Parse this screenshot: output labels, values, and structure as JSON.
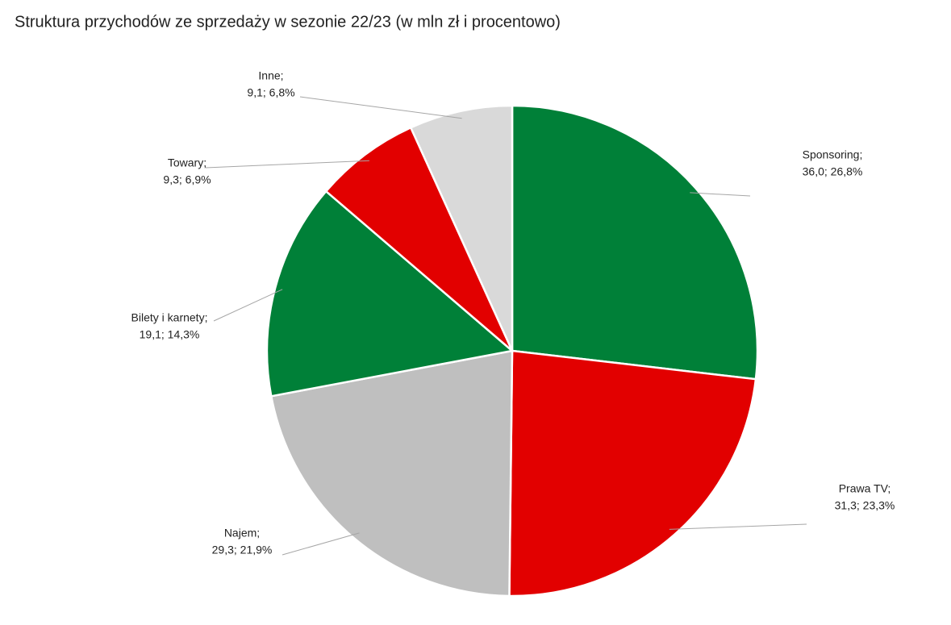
{
  "chart_data": {
    "type": "pie",
    "title": "Struktura przychodów ze sprzedaży w sezonie 22/23 (w mln zł i procentowo)",
    "categories": [
      "Sponsoring;",
      "Prawa TV;",
      "Najem;",
      "Bilety i karnety;",
      "Towary;",
      "Inne;"
    ],
    "values": [
      36.0,
      31.3,
      29.3,
      19.1,
      9.3,
      9.1
    ],
    "percents": [
      26.8,
      23.3,
      21.9,
      14.3,
      6.9,
      6.8
    ],
    "value_labels": [
      "36,0; 26,8%",
      "31,3; 23,3%",
      "29,3; 21,9%",
      "19,1; 14,3%",
      "9,3; 6,9%",
      "9,1; 6,8%"
    ],
    "colors": [
      "#008038",
      "#e20000",
      "#bfbfbf",
      "#008038",
      "#e20000",
      "#d9d9d9"
    ]
  }
}
